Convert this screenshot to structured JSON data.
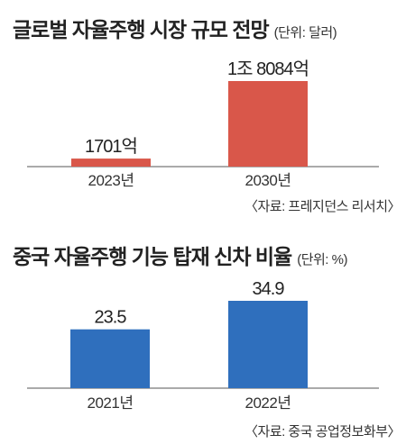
{
  "charts": [
    {
      "title": "글로벌 자율주행 시장 규모 전망",
      "unit": "(단위: 달러)",
      "source": "〈자료: 프레지던스 리서치〉",
      "bar_color": "#d9574a",
      "value_labels": [
        "1701억",
        "1조 8084억"
      ]
    },
    {
      "title": "중국 자율주행 기능 탑재 신차 비율",
      "unit": "(단위: %)",
      "source": "〈자료: 중국 공업정보화부〉",
      "bar_color": "#2f6fbd",
      "value_labels": [
        "23.5",
        "34.9"
      ]
    }
  ],
  "chart_data": [
    {
      "type": "bar",
      "title": "글로벌 자율주행 시장 규모 전망",
      "unit": "(단위: 달러)",
      "categories": [
        "2023년",
        "2030년"
      ],
      "values": [
        170100000000,
        1808400000000
      ],
      "value_labels": [
        "1701억",
        "1조 8084억"
      ],
      "color": "#d9574a",
      "grid": false
    },
    {
      "type": "bar",
      "title": "중국 자율주행 기능 탑재 신차 비율",
      "unit": "(단위: %)",
      "categories": [
        "2021년",
        "2022년"
      ],
      "values": [
        23.5,
        34.9
      ],
      "value_labels": [
        "23.5",
        "34.9"
      ],
      "color": "#2f6fbd",
      "grid": false
    }
  ]
}
